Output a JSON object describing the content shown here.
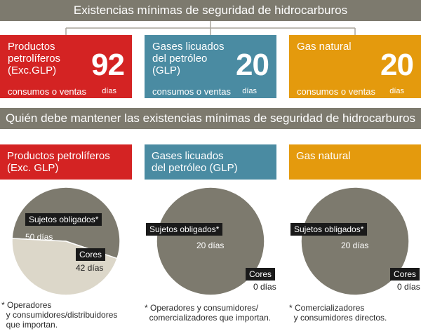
{
  "top_title": "Existencias mínimas de seguridad de hidrocarburos",
  "second_title": "Quién debe mantener las existencias mínimas de seguridad de hidrocarburos",
  "stocks": [
    {
      "name_lines": [
        "Productos",
        "petrolíferos",
        "(Exc.GLP)"
      ],
      "unit_label": "consumos o ventas",
      "value": "92",
      "days_label": "días",
      "color": "#d42323"
    },
    {
      "name_lines": [
        "Gases licuados",
        "del petróleo",
        "(GLP)"
      ],
      "unit_label": "consumos o ventas",
      "value": "20",
      "days_label": "días",
      "color": "#4a8ba2"
    },
    {
      "name_lines": [
        "Gas natural"
      ],
      "unit_label": "consumos o ventas",
      "value": "20",
      "days_label": "días",
      "color": "#e49a0d"
    }
  ],
  "holders": [
    {
      "name_lines": [
        "Productos petrolíferos",
        "(Exc. GLP)"
      ],
      "obligated_label": "Sujetos obligados*",
      "obligated_days": "50 días",
      "cores_label": "Cores",
      "cores_days": "42 días",
      "note": "* Operadores\n  y consumidores/distribuidores\n  que importan."
    },
    {
      "name_lines": [
        "Gases licuados",
        "del petróleo (GLP)"
      ],
      "obligated_label": "Sujetos obligados*",
      "obligated_days": "20 días",
      "cores_label": "Cores",
      "cores_days": "0 días",
      "note": "* Operadores y consumidores/\n  comercializadores que importan."
    },
    {
      "name_lines": [
        "Gas natural"
      ],
      "obligated_label": "Sujetos obligados*",
      "obligated_days": "20 días",
      "cores_label": "Cores",
      "cores_days": "0 días",
      "note": "* Comercializadores\n  y consumidores directos."
    }
  ],
  "chart_data": [
    {
      "type": "pie",
      "categories": [
        "Sujetos obligados*",
        "Cores"
      ],
      "values": [
        50,
        42
      ]
    },
    {
      "type": "pie",
      "categories": [
        "Sujetos obligados*",
        "Cores"
      ],
      "values": [
        20,
        0
      ]
    },
    {
      "type": "pie",
      "categories": [
        "Sujetos obligados*",
        "Cores"
      ],
      "values": [
        20,
        0
      ]
    }
  ],
  "colors": {
    "banner": "#7d7a6e",
    "pie_obligated": "#7d7a6e",
    "pie_cores": "#dcd7c9",
    "connector": "#a8a49a"
  }
}
